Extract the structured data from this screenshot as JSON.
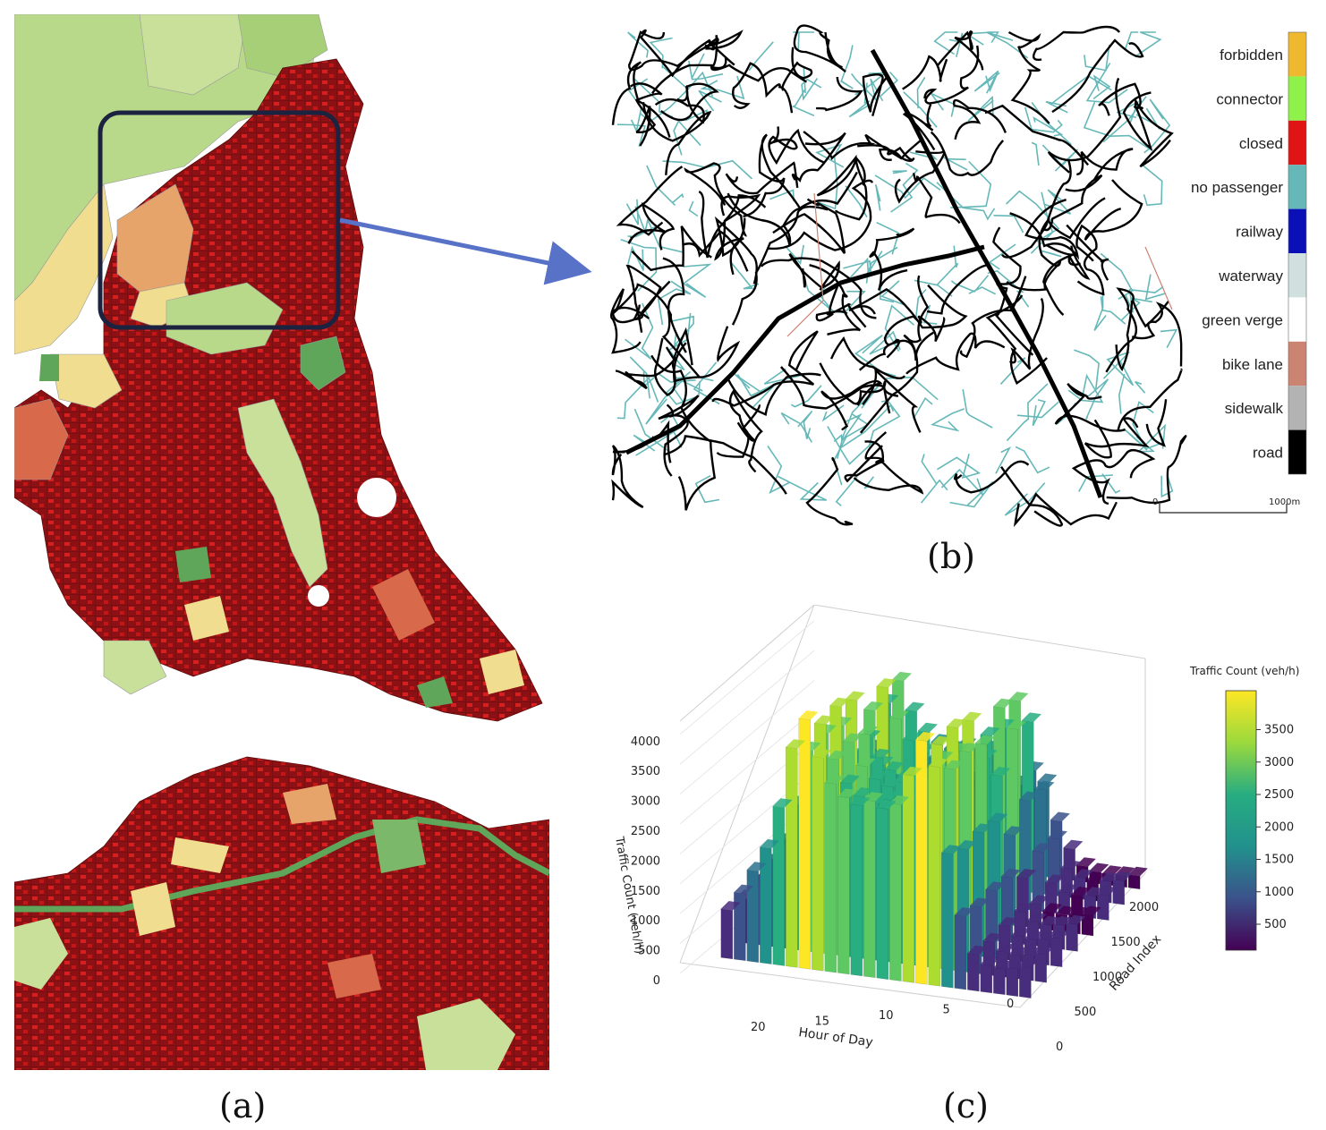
{
  "captions": {
    "a": "(a)",
    "b": "(b)",
    "c": "(c)"
  },
  "map_a": {
    "colors": {
      "dark_red": "#8b1114",
      "red": "#d61f1f",
      "salmon": "#d8694a",
      "orange": "#e6a36a",
      "light_yellow": "#f0dd8f",
      "light_green": "#b9d98a",
      "green": "#5fa65a"
    }
  },
  "map_b": {
    "legend": [
      {
        "label": "forbidden",
        "color": "#efb92f"
      },
      {
        "label": "connector",
        "color": "#8ef24b"
      },
      {
        "label": "closed",
        "color": "#e01414"
      },
      {
        "label": "no passenger",
        "color": "#66b8b8"
      },
      {
        "label": "railway",
        "color": "#0a10b5"
      },
      {
        "label": "waterway",
        "color": "#cfe0df"
      },
      {
        "label": "green verge",
        "color": "#ffffff"
      },
      {
        "label": "bike lane",
        "color": "#cc8472"
      },
      {
        "label": "sidewalk",
        "color": "#b3b3b3"
      },
      {
        "label": "road",
        "color": "#000000"
      }
    ],
    "scale": {
      "start": "0",
      "end": "1000m"
    }
  },
  "chart_data": {
    "type": "bar3d",
    "xlabel": "Hour of Day",
    "ylabel": "Road Index",
    "zlabel": "Traffic Count (veh/h)",
    "x_ticks": [
      "0",
      "5",
      "10",
      "15",
      "20"
    ],
    "y_ticks": [
      "0",
      "500",
      "1000",
      "1500",
      "2000"
    ],
    "z_ticks": [
      "0",
      "500",
      "1000",
      "1500",
      "2000",
      "2500",
      "3000",
      "3500",
      "4000"
    ],
    "colorbar": {
      "title": "Traffic Count (veh/h)",
      "ticks": [
        "500",
        "1000",
        "1500",
        "2000",
        "2500",
        "3000",
        "3500"
      ],
      "colormap": "viridis",
      "range": [
        100,
        4100
      ]
    },
    "hourly_profile": [
      {
        "hour": 0,
        "value": 500
      },
      {
        "hour": 1,
        "value": 450
      },
      {
        "hour": 2,
        "value": 420
      },
      {
        "hour": 3,
        "value": 450
      },
      {
        "hour": 4,
        "value": 600
      },
      {
        "hour": 5,
        "value": 1200
      },
      {
        "hour": 6,
        "value": 2200
      },
      {
        "hour": 7,
        "value": 3600
      },
      {
        "hour": 8,
        "value": 4000
      },
      {
        "hour": 9,
        "value": 3400
      },
      {
        "hour": 10,
        "value": 2900
      },
      {
        "hour": 11,
        "value": 2800
      },
      {
        "hour": 12,
        "value": 2900
      },
      {
        "hour": 13,
        "value": 2800
      },
      {
        "hour": 14,
        "value": 2900
      },
      {
        "hour": 15,
        "value": 3100
      },
      {
        "hour": 16,
        "value": 3500
      },
      {
        "hour": 17,
        "value": 4100
      },
      {
        "hour": 18,
        "value": 3600
      },
      {
        "hour": 19,
        "value": 2600
      },
      {
        "hour": 20,
        "value": 1900
      },
      {
        "hour": 21,
        "value": 1500
      },
      {
        "hour": 22,
        "value": 1100
      },
      {
        "hour": 23,
        "value": 800
      }
    ]
  }
}
